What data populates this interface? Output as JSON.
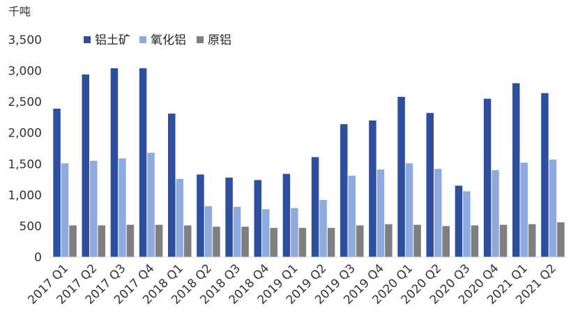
{
  "chart_data": {
    "type": "bar",
    "unit_label": "千吨",
    "categories": [
      "2017 Q1",
      "2017 Q2",
      "2017 Q3",
      "2017 Q4",
      "2018 Q1",
      "2018 Q2",
      "2018 Q3",
      "2018 Q4",
      "2019 Q1",
      "2019 Q2",
      "2019 Q3",
      "2019 Q4",
      "2020 Q1",
      "2020 Q2",
      "2020 Q3",
      "2020 Q4",
      "2021 Q1",
      "2021 Q2"
    ],
    "series": [
      {
        "name": "铝土矿",
        "color": "#2e4f9e",
        "values": [
          2390,
          2940,
          3040,
          3040,
          2310,
          1330,
          1280,
          1240,
          1340,
          1610,
          2140,
          2200,
          2580,
          2320,
          1150,
          2550,
          2800,
          2640
        ]
      },
      {
        "name": "氧化铝",
        "color": "#8eaadf",
        "values": [
          1510,
          1550,
          1590,
          1680,
          1260,
          820,
          810,
          770,
          790,
          920,
          1310,
          1410,
          1510,
          1420,
          1060,
          1400,
          1520,
          1570
        ]
      },
      {
        "name": "原铝",
        "color": "#7f7f7f",
        "values": [
          510,
          510,
          520,
          520,
          510,
          490,
          490,
          470,
          470,
          470,
          510,
          530,
          520,
          500,
          510,
          520,
          530,
          560
        ]
      }
    ],
    "yticks": [
      "0",
      "500",
      "1,000",
      "1,500",
      "2,000",
      "2,500",
      "3,000",
      "3,500"
    ],
    "ylim": [
      0,
      3500
    ],
    "grid": false,
    "legend": "top-left"
  }
}
